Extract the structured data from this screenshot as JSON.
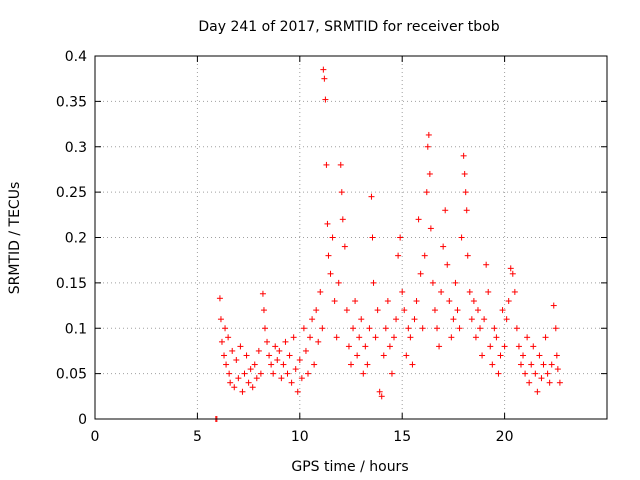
{
  "chart_data": {
    "type": "scatter",
    "title": "Day 241 of 2017, SRMTID for receiver tbob",
    "xlabel": "GPS time / hours",
    "ylabel": "SRMTID / TECUs",
    "xlim": [
      0,
      25
    ],
    "ylim": [
      0,
      0.4
    ],
    "xticks": [
      0,
      5,
      10,
      15,
      20
    ],
    "yticks": [
      0,
      0.05,
      0.1,
      0.15,
      0.2,
      0.25,
      0.3,
      0.35,
      0.4
    ],
    "xtick_labels": [
      "0",
      "5",
      "10",
      "15",
      "20"
    ],
    "ytick_labels": [
      "0",
      "0.05",
      "0.1",
      "0.15",
      "0.2",
      "0.25",
      "0.3",
      "0.35",
      "0.4"
    ],
    "grid": true,
    "marker": "+",
    "color": "#ff0000",
    "series": [
      {
        "name": "SRMTID",
        "points": [
          [
            5.9,
            0.0
          ],
          [
            5.95,
            0.0
          ],
          [
            6.1,
            0.133
          ],
          [
            6.15,
            0.11
          ],
          [
            6.2,
            0.085
          ],
          [
            6.3,
            0.07
          ],
          [
            6.35,
            0.1
          ],
          [
            6.4,
            0.06
          ],
          [
            6.5,
            0.09
          ],
          [
            6.55,
            0.05
          ],
          [
            6.6,
            0.04
          ],
          [
            6.7,
            0.075
          ],
          [
            6.8,
            0.035
          ],
          [
            6.9,
            0.065
          ],
          [
            7.0,
            0.045
          ],
          [
            7.1,
            0.08
          ],
          [
            7.2,
            0.03
          ],
          [
            7.3,
            0.05
          ],
          [
            7.4,
            0.07
          ],
          [
            7.5,
            0.04
          ],
          [
            7.6,
            0.055
          ],
          [
            7.7,
            0.035
          ],
          [
            7.8,
            0.06
          ],
          [
            7.9,
            0.045
          ],
          [
            8.0,
            0.075
          ],
          [
            8.1,
            0.05
          ],
          [
            8.2,
            0.138
          ],
          [
            8.25,
            0.12
          ],
          [
            8.3,
            0.1
          ],
          [
            8.4,
            0.085
          ],
          [
            8.5,
            0.07
          ],
          [
            8.6,
            0.06
          ],
          [
            8.7,
            0.05
          ],
          [
            8.8,
            0.08
          ],
          [
            8.9,
            0.065
          ],
          [
            9.0,
            0.075
          ],
          [
            9.1,
            0.045
          ],
          [
            9.2,
            0.06
          ],
          [
            9.3,
            0.085
          ],
          [
            9.4,
            0.05
          ],
          [
            9.5,
            0.07
          ],
          [
            9.6,
            0.04
          ],
          [
            9.7,
            0.09
          ],
          [
            9.8,
            0.055
          ],
          [
            9.9,
            0.03
          ],
          [
            10.0,
            0.065
          ],
          [
            10.1,
            0.045
          ],
          [
            10.2,
            0.1
          ],
          [
            10.3,
            0.075
          ],
          [
            10.4,
            0.05
          ],
          [
            10.5,
            0.09
          ],
          [
            10.6,
            0.11
          ],
          [
            10.7,
            0.06
          ],
          [
            10.8,
            0.12
          ],
          [
            10.9,
            0.085
          ],
          [
            11.0,
            0.14
          ],
          [
            11.1,
            0.1
          ],
          [
            11.15,
            0.385
          ],
          [
            11.2,
            0.375
          ],
          [
            11.25,
            0.352
          ],
          [
            11.3,
            0.28
          ],
          [
            11.35,
            0.215
          ],
          [
            11.4,
            0.18
          ],
          [
            11.5,
            0.16
          ],
          [
            11.6,
            0.2
          ],
          [
            11.7,
            0.13
          ],
          [
            11.8,
            0.09
          ],
          [
            11.9,
            0.15
          ],
          [
            12.0,
            0.28
          ],
          [
            12.05,
            0.25
          ],
          [
            12.1,
            0.22
          ],
          [
            12.2,
            0.19
          ],
          [
            12.3,
            0.12
          ],
          [
            12.4,
            0.08
          ],
          [
            12.5,
            0.06
          ],
          [
            12.6,
            0.1
          ],
          [
            12.7,
            0.13
          ],
          [
            12.8,
            0.07
          ],
          [
            12.9,
            0.09
          ],
          [
            13.0,
            0.11
          ],
          [
            13.1,
            0.05
          ],
          [
            13.2,
            0.08
          ],
          [
            13.3,
            0.06
          ],
          [
            13.4,
            0.1
          ],
          [
            13.5,
            0.245
          ],
          [
            13.55,
            0.2
          ],
          [
            13.6,
            0.15
          ],
          [
            13.7,
            0.09
          ],
          [
            13.8,
            0.12
          ],
          [
            13.9,
            0.03
          ],
          [
            14.0,
            0.025
          ],
          [
            14.1,
            0.07
          ],
          [
            14.2,
            0.1
          ],
          [
            14.3,
            0.13
          ],
          [
            14.4,
            0.08
          ],
          [
            14.5,
            0.05
          ],
          [
            14.6,
            0.09
          ],
          [
            14.7,
            0.11
          ],
          [
            14.8,
            0.18
          ],
          [
            14.9,
            0.2
          ],
          [
            15.0,
            0.14
          ],
          [
            15.1,
            0.12
          ],
          [
            15.2,
            0.07
          ],
          [
            15.3,
            0.1
          ],
          [
            15.4,
            0.09
          ],
          [
            15.5,
            0.06
          ],
          [
            15.6,
            0.11
          ],
          [
            15.7,
            0.13
          ],
          [
            15.8,
            0.22
          ],
          [
            15.9,
            0.16
          ],
          [
            16.0,
            0.1
          ],
          [
            16.1,
            0.18
          ],
          [
            16.2,
            0.25
          ],
          [
            16.25,
            0.3
          ],
          [
            16.3,
            0.313
          ],
          [
            16.35,
            0.27
          ],
          [
            16.4,
            0.21
          ],
          [
            16.5,
            0.15
          ],
          [
            16.6,
            0.12
          ],
          [
            16.7,
            0.1
          ],
          [
            16.8,
            0.08
          ],
          [
            16.9,
            0.14
          ],
          [
            17.0,
            0.19
          ],
          [
            17.1,
            0.23
          ],
          [
            17.2,
            0.17
          ],
          [
            17.3,
            0.13
          ],
          [
            17.4,
            0.09
          ],
          [
            17.5,
            0.11
          ],
          [
            17.6,
            0.15
          ],
          [
            17.7,
            0.12
          ],
          [
            17.8,
            0.1
          ],
          [
            17.9,
            0.2
          ],
          [
            18.0,
            0.29
          ],
          [
            18.05,
            0.27
          ],
          [
            18.1,
            0.25
          ],
          [
            18.15,
            0.23
          ],
          [
            18.2,
            0.18
          ],
          [
            18.3,
            0.14
          ],
          [
            18.4,
            0.11
          ],
          [
            18.5,
            0.13
          ],
          [
            18.6,
            0.09
          ],
          [
            18.7,
            0.12
          ],
          [
            18.8,
            0.1
          ],
          [
            18.9,
            0.07
          ],
          [
            19.0,
            0.11
          ],
          [
            19.1,
            0.17
          ],
          [
            19.2,
            0.14
          ],
          [
            19.3,
            0.08
          ],
          [
            19.4,
            0.06
          ],
          [
            19.5,
            0.1
          ],
          [
            19.6,
            0.09
          ],
          [
            19.7,
            0.05
          ],
          [
            19.8,
            0.07
          ],
          [
            19.9,
            0.12
          ],
          [
            20.0,
            0.08
          ],
          [
            20.1,
            0.11
          ],
          [
            20.2,
            0.13
          ],
          [
            20.3,
            0.166
          ],
          [
            20.4,
            0.16
          ],
          [
            20.5,
            0.14
          ],
          [
            20.6,
            0.1
          ],
          [
            20.7,
            0.08
          ],
          [
            20.8,
            0.06
          ],
          [
            20.9,
            0.07
          ],
          [
            21.0,
            0.05
          ],
          [
            21.1,
            0.09
          ],
          [
            21.2,
            0.04
          ],
          [
            21.3,
            0.06
          ],
          [
            21.4,
            0.08
          ],
          [
            21.5,
            0.05
          ],
          [
            21.6,
            0.03
          ],
          [
            21.7,
            0.07
          ],
          [
            21.8,
            0.045
          ],
          [
            21.9,
            0.06
          ],
          [
            22.0,
            0.09
          ],
          [
            22.1,
            0.05
          ],
          [
            22.2,
            0.04
          ],
          [
            22.3,
            0.06
          ],
          [
            22.4,
            0.125
          ],
          [
            22.5,
            0.1
          ],
          [
            22.55,
            0.07
          ],
          [
            22.6,
            0.055
          ],
          [
            22.7,
            0.04
          ]
        ]
      }
    ]
  }
}
